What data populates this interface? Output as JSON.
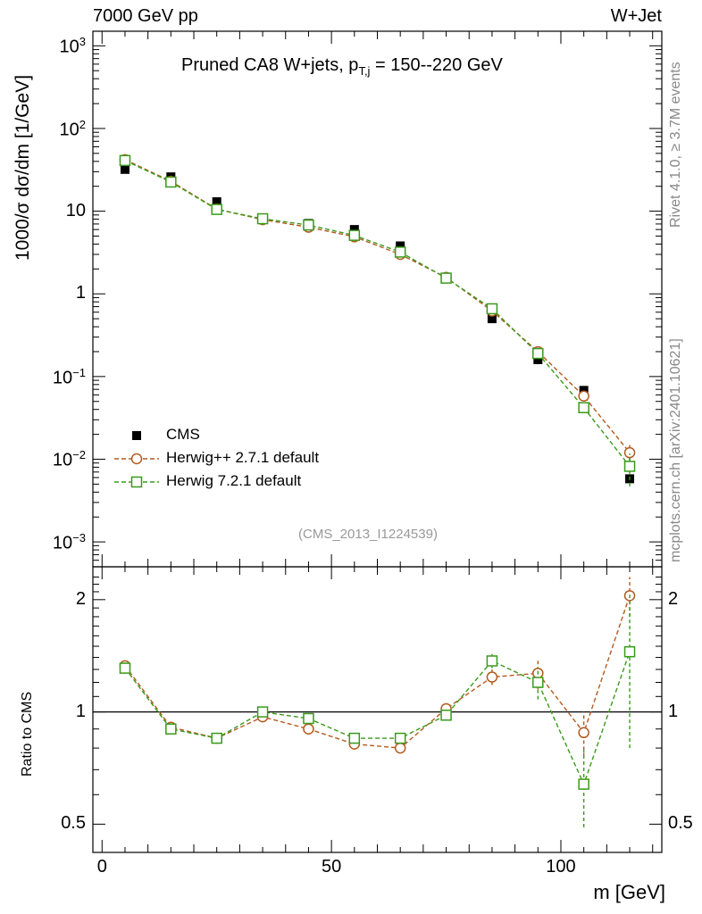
{
  "header": {
    "left": "7000 GeV pp",
    "right": "W+Jet"
  },
  "sidebar": {
    "rivet": "Rivet 4.1.0, ≥ 3.7M events",
    "mcplots": "mcplots.cern.ch [arXiv:2401.10621]"
  },
  "colors": {
    "cms": "#000000",
    "herwigpp": "#b35a1f",
    "herwig7": "#3a9a1a"
  },
  "chart_data": [
    {
      "type": "scatter",
      "title": "Pruned CA8 W+jets, p_T,j = 150--220 GeV",
      "title_main": "Pruned CA8 W+jets, p",
      "title_sub": "T,j",
      "title_tail": " = 150--220 GeV",
      "ylabel": "1000/σ  dσ/dm [1/GeV]",
      "yscale": "log",
      "ylim": [
        0.0005,
        1500
      ],
      "xlim": [
        -2,
        122
      ],
      "watermark": "(CMS_2013_I1224539)",
      "y_ticks": [
        {
          "v": 1000,
          "base": "10",
          "exp": "3"
        },
        {
          "v": 100,
          "base": "10",
          "exp": "2"
        },
        {
          "v": 10,
          "base": "10",
          "exp": ""
        },
        {
          "v": 1,
          "base": "1",
          "exp": ""
        },
        {
          "v": 0.1,
          "base": "10",
          "exp": "−1"
        },
        {
          "v": 0.01,
          "base": "10",
          "exp": "−2"
        },
        {
          "v": 0.001,
          "base": "10",
          "exp": "−3"
        }
      ],
      "legend": [
        "CMS",
        "Herwig++ 2.7.1 default",
        "Herwig 7.2.1 default"
      ],
      "legend_position": "lower-left",
      "x": [
        5,
        15,
        25,
        35,
        45,
        55,
        65,
        75,
        85,
        95,
        105,
        115
      ],
      "series": [
        {
          "name": "CMS",
          "marker": "square-filled",
          "values": [
            32,
            26,
            13,
            8.2,
            7.1,
            6.0,
            3.8,
            1.55,
            0.5,
            0.16,
            0.068,
            0.0058
          ]
        },
        {
          "name": "Herwig++ 2.7.1 default",
          "marker": "circle-open",
          "values": [
            42,
            23,
            10.6,
            7.9,
            6.4,
            4.9,
            3.0,
            1.58,
            0.62,
            0.2,
            0.058,
            0.012
          ],
          "err": [
            0,
            0,
            0,
            0,
            0,
            0,
            0,
            0,
            0,
            0,
            0,
            0.004
          ]
        },
        {
          "name": "Herwig 7.2.1 default",
          "marker": "square-open",
          "values": [
            41,
            22.5,
            10.5,
            8.1,
            6.8,
            5.1,
            3.2,
            1.55,
            0.66,
            0.19,
            0.042,
            0.0082
          ],
          "err": [
            0,
            0,
            0,
            0,
            0,
            0,
            0,
            0,
            0,
            0,
            0.005,
            0.0035
          ]
        }
      ]
    },
    {
      "type": "scatter",
      "title": "",
      "ylabel": "Ratio to CMS",
      "xlabel": "m [GeV]",
      "yscale": "log",
      "ylim": [
        0.42,
        2.45
      ],
      "xlim": [
        -2,
        122
      ],
      "y_ticks": [
        0.5,
        1,
        2
      ],
      "y_tick_labels": [
        "0.5",
        "1",
        "2"
      ],
      "x_ticks": [
        0,
        50,
        100
      ],
      "x_tick_labels": [
        "0",
        "50",
        "100"
      ],
      "reference_line": 1,
      "x": [
        5,
        15,
        25,
        35,
        45,
        55,
        65,
        75,
        85,
        95,
        105,
        115
      ],
      "series": [
        {
          "name": "Herwig++ 2.7.1 default",
          "marker": "circle-open",
          "values": [
            1.33,
            0.91,
            0.85,
            0.97,
            0.9,
            0.82,
            0.8,
            1.02,
            1.24,
            1.27,
            0.88,
            2.05
          ],
          "err": [
            0,
            0,
            0,
            0,
            0,
            0,
            0,
            0,
            0.06,
            0.12,
            0.12,
            0.25
          ]
        },
        {
          "name": "Herwig 7.2.1 default",
          "marker": "square-open",
          "values": [
            1.31,
            0.9,
            0.85,
            1.0,
            0.96,
            0.85,
            0.85,
            0.98,
            1.37,
            1.2,
            0.64,
            1.45
          ],
          "err": [
            0,
            0,
            0,
            0,
            0,
            0,
            0,
            0,
            0.06,
            0.12,
            0.15,
            0.65
          ]
        }
      ]
    }
  ]
}
